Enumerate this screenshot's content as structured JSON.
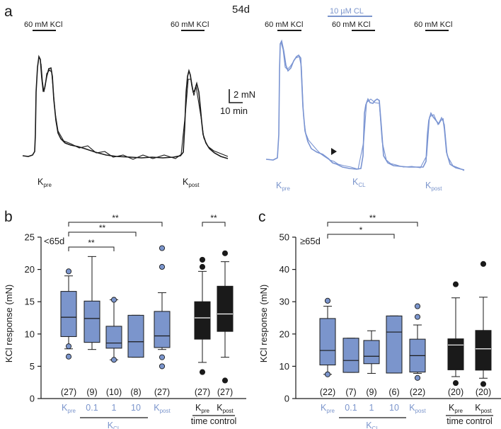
{
  "panels": {
    "a": "a",
    "b": "b",
    "c": "c"
  },
  "traces": {
    "age_label": "54d",
    "black": {
      "stim_left": "60 mM KCl",
      "stim_right": "60 mM KCl",
      "label_pre": {
        "main": "K",
        "sub": "pre"
      },
      "label_post": {
        "main": "K",
        "sub": "post"
      }
    },
    "blue": {
      "cl_label": "10 µM CL",
      "stim_1": "60 mM KCl",
      "stim_2": "60 mM KCl",
      "stim_3": "60 mM KCl",
      "label_pre": {
        "main": "K",
        "sub": "pre"
      },
      "label_cl": {
        "main": "K",
        "sub": "CL"
      },
      "label_post": {
        "main": "K",
        "sub": "post"
      }
    },
    "scale_bar": {
      "force": "2 mN",
      "time": "10 min"
    }
  },
  "colors": {
    "blue": "#7b95cc",
    "black": "#1a1a1a",
    "blue_trace": "#7a94d2"
  },
  "chart_data": [
    {
      "type": "box",
      "panel": "b",
      "group_label": "<65d",
      "ylabel": "KCl response (mN)",
      "ylim": [
        0,
        25
      ],
      "yticks": [
        0,
        5,
        10,
        15,
        20,
        25
      ],
      "categories": [
        {
          "main": "K",
          "sub": "pre",
          "color": "blue"
        },
        {
          "main": "0.1",
          "sub": "",
          "color": "blue"
        },
        {
          "main": "1",
          "sub": "",
          "color": "blue"
        },
        {
          "main": "10",
          "sub": "",
          "color": "blue"
        },
        {
          "main": "K",
          "sub": "post",
          "color": "blue"
        },
        {
          "main": "K",
          "sub": "pre",
          "color": "black"
        },
        {
          "main": "K",
          "sub": "post",
          "color": "black"
        }
      ],
      "counts": [
        "(27)",
        "(9)",
        "(10)",
        "(8)",
        "(27)",
        "(27)",
        "(27)"
      ],
      "boxes": [
        {
          "whislo": 7.7,
          "q1": 9.6,
          "med": 12.6,
          "q3": 16.6,
          "whishi": 19.0,
          "fliers": [
            8.1,
            6.5,
            19.7
          ],
          "color": "blue"
        },
        {
          "whislo": 7.6,
          "q1": 8.7,
          "med": 12.4,
          "q3": 15.1,
          "whishi": 22.0,
          "fliers": [],
          "color": "blue"
        },
        {
          "whislo": 6.0,
          "q1": 7.8,
          "med": 8.6,
          "q3": 11.2,
          "whishi": 15.3,
          "fliers": [
            6.0,
            15.3
          ],
          "color": "blue"
        },
        {
          "whislo": 6.4,
          "q1": 6.4,
          "med": 8.8,
          "q3": 12.9,
          "whishi": 12.9,
          "fliers": [],
          "color": "blue"
        },
        {
          "whislo": 7.6,
          "q1": 7.9,
          "med": 9.7,
          "q3": 13.5,
          "whishi": 16.4,
          "fliers": [
            6.4,
            5.0,
            20.4,
            23.3
          ],
          "color": "blue"
        },
        {
          "whislo": 5.6,
          "q1": 9.2,
          "med": 12.5,
          "q3": 15.0,
          "whishi": 19.7,
          "fliers": [
            4.1,
            21.5,
            20.4
          ],
          "color": "black"
        },
        {
          "whislo": 6.4,
          "q1": 10.4,
          "med": 13.1,
          "q3": 17.4,
          "whishi": 21.2,
          "fliers": [
            2.8,
            22.5
          ],
          "color": "black"
        }
      ],
      "significance": [
        {
          "from": 0,
          "to": 2,
          "label": "**"
        },
        {
          "from": 0,
          "to": 3,
          "label": "**"
        },
        {
          "from": 0,
          "to": 4,
          "label": "**"
        },
        {
          "from": 5,
          "to": 6,
          "label": "**"
        }
      ],
      "group_labels": {
        "kcl": {
          "main": "K",
          "sub": "CL"
        },
        "time_control": "time control"
      }
    },
    {
      "type": "box",
      "panel": "c",
      "group_label": "≥65d",
      "ylabel": "KCl response (mN)",
      "ylim": [
        0,
        50
      ],
      "yticks": [
        0,
        10,
        20,
        30,
        40,
        50
      ],
      "categories": [
        {
          "main": "K",
          "sub": "pre",
          "color": "blue"
        },
        {
          "main": "0.1",
          "sub": "",
          "color": "blue"
        },
        {
          "main": "1",
          "sub": "",
          "color": "blue"
        },
        {
          "main": "10",
          "sub": "",
          "color": "blue"
        },
        {
          "main": "K",
          "sub": "post",
          "color": "blue"
        },
        {
          "main": "K",
          "sub": "pre",
          "color": "black"
        },
        {
          "main": "K",
          "sub": "post",
          "color": "black"
        }
      ],
      "counts": [
        "(22)",
        "(7)",
        "(9)",
        "(6)",
        "(22)",
        "(20)",
        "(20)"
      ],
      "boxes": [
        {
          "whislo": 7.5,
          "q1": 10.4,
          "med": 14.9,
          "q3": 24.8,
          "whishi": 28.6,
          "fliers": [
            7.5,
            30.3
          ],
          "color": "blue"
        },
        {
          "whislo": 8.1,
          "q1": 8.1,
          "med": 11.8,
          "q3": 18.7,
          "whishi": 18.7,
          "fliers": [],
          "color": "blue"
        },
        {
          "whislo": 7.8,
          "q1": 10.8,
          "med": 13.1,
          "q3": 18.0,
          "whishi": 21.0,
          "fliers": [],
          "color": "blue"
        },
        {
          "whislo": 7.9,
          "q1": 7.9,
          "med": 20.6,
          "q3": 25.6,
          "whishi": 25.6,
          "fliers": [],
          "color": "blue"
        },
        {
          "whislo": 7.8,
          "q1": 8.2,
          "med": 13.3,
          "q3": 18.4,
          "whishi": 22.8,
          "fliers": [
            6.4,
            25.3,
            28.6
          ],
          "color": "blue"
        },
        {
          "whislo": 6.8,
          "q1": 8.9,
          "med": 16.6,
          "q3": 18.5,
          "whishi": 31.2,
          "fliers": [
            4.8,
            35.4
          ],
          "color": "black"
        },
        {
          "whislo": 6.3,
          "q1": 8.8,
          "med": 15.4,
          "q3": 21.1,
          "whishi": 31.4,
          "fliers": [
            4.5,
            41.7
          ],
          "color": "black"
        }
      ],
      "significance": [
        {
          "from": 0,
          "to": 3,
          "label": "*"
        },
        {
          "from": 0,
          "to": 4,
          "label": "**"
        }
      ],
      "group_labels": {
        "kcl": {
          "main": "K",
          "sub": "CL"
        },
        "time_control": "time control"
      }
    }
  ]
}
